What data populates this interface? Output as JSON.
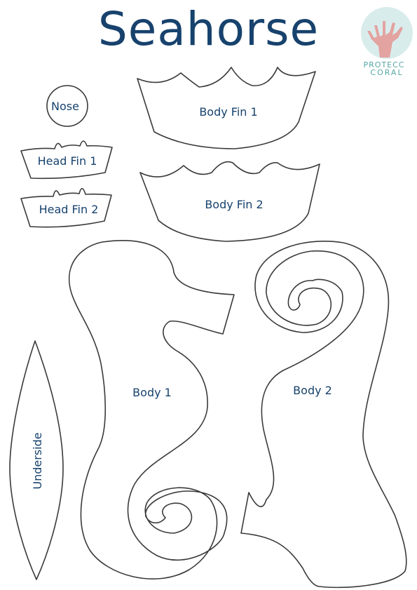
{
  "title": "Seahorse",
  "logo": {
    "line1": "PROTECC",
    "line2": "CORAL",
    "icon": "coral-icon"
  },
  "pieces": {
    "nose": "Nose",
    "head_fin_1": "Head Fin 1",
    "head_fin_2": "Head Fin 2",
    "body_fin_1": "Body Fin 1",
    "body_fin_2": "Body Fin 2",
    "body_1": "Body 1",
    "body_2": "Body 2",
    "underside": "Underside"
  },
  "colors": {
    "title": "#17426d",
    "outline": "#3a3a3a",
    "logo_circle": "#d9ecec",
    "coral": "#e3a3a0",
    "logo_text": "#5aa6a6"
  }
}
